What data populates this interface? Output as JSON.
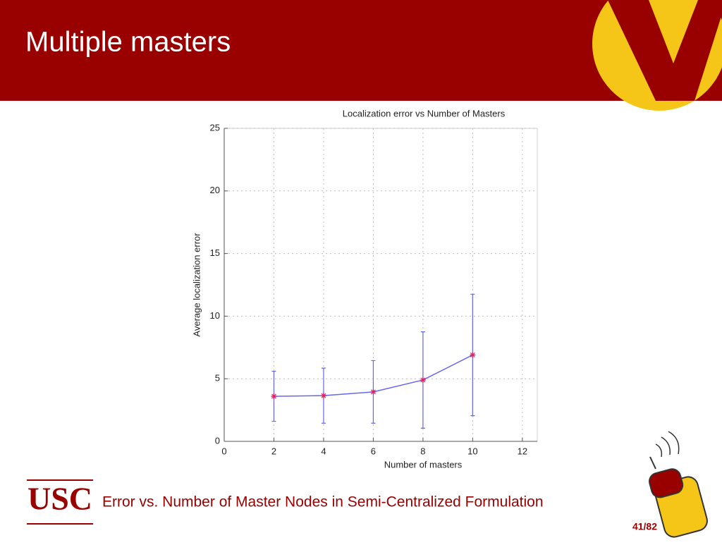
{
  "slide": {
    "title": "Multiple masters",
    "caption": "Error vs. Number of Master Nodes in Semi-Centralized Formulation",
    "page_number": "41/82",
    "logo": "USC"
  },
  "chart_data": {
    "type": "line",
    "title": "Localization error vs Number of Masters",
    "x_label": "Number of masters",
    "y_label": "Average localization error",
    "x": [
      2,
      4,
      6,
      8,
      10
    ],
    "series": [
      {
        "color": "#6666ee",
        "marker_color": "#dd2266",
        "values": [
          3.6,
          3.65,
          3.95,
          4.9,
          6.9
        ],
        "errors": [
          2.0,
          2.2,
          2.5,
          3.85,
          4.85
        ]
      }
    ],
    "xlim": [
      0,
      12.6
    ],
    "ylim": [
      0,
      25
    ],
    "xticks": [
      0,
      2,
      4,
      6,
      8,
      10,
      12
    ],
    "yticks": [
      0,
      5,
      10,
      15,
      20,
      25
    ],
    "grid": true
  }
}
